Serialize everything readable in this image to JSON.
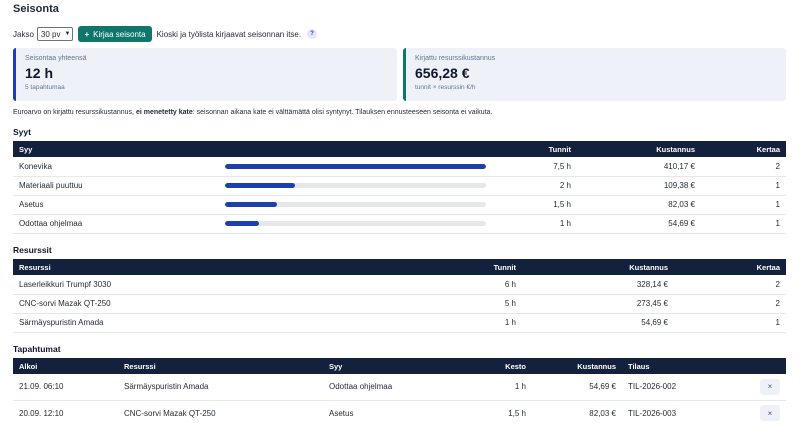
{
  "page": {
    "title": "Seisonta"
  },
  "toolbar": {
    "period_label": "Jakso",
    "period_value": "30 pv",
    "add_button": "Kirjaa seisonta",
    "hint": "Kioski ja työlista kirjaavat seisonnan itse.",
    "help": "?"
  },
  "kpis": {
    "total": {
      "label": "Seisontaa yhteensä",
      "value": "12 h",
      "sub": "5 tapahtumaa"
    },
    "cost": {
      "label": "Kirjattu resurssikustannus",
      "value": "656,28 €",
      "sub": "tunnit × resurssin €/h"
    }
  },
  "note": {
    "before": "Euroarvo on kirjattu resurssikustannus, ",
    "bold": "ei menetetty kate",
    "after": ": seisonnan aikana kate ei välttämättä olisi syntynyt. Tilauksen ennusteeseen seisonta ei vaikuta."
  },
  "causes": {
    "title": "Syyt",
    "headers": {
      "cause": "Syy",
      "hours": "Tunnit",
      "cost": "Kustannus",
      "count": "Kertaa"
    },
    "rows": [
      {
        "cause": "Konevika",
        "share": 1.0,
        "hours": "7,5 h",
        "cost": "410,17 €",
        "count": "2"
      },
      {
        "cause": "Materiaali puuttuu",
        "share": 0.27,
        "hours": "2 h",
        "cost": "109,38 €",
        "count": "1"
      },
      {
        "cause": "Asetus",
        "share": 0.2,
        "hours": "1,5 h",
        "cost": "82,03 €",
        "count": "1"
      },
      {
        "cause": "Odottaa ohjelmaa",
        "share": 0.13,
        "hours": "1 h",
        "cost": "54,69 €",
        "count": "1"
      }
    ]
  },
  "resources": {
    "title": "Resurssit",
    "headers": {
      "resource": "Resurssi",
      "hours": "Tunnit",
      "cost": "Kustannus",
      "count": "Kertaa"
    },
    "rows": [
      {
        "resource": "Laserleikkuri Trumpf 3030",
        "hours": "6 h",
        "cost": "328,14 €",
        "count": "2"
      },
      {
        "resource": "CNC-sorvi Mazak QT-250",
        "hours": "5 h",
        "cost": "273,45 €",
        "count": "2"
      },
      {
        "resource": "Särmäyspuristin Amada",
        "hours": "1 h",
        "cost": "54,69 €",
        "count": "1"
      }
    ]
  },
  "events": {
    "title": "Tapahtumat",
    "headers": {
      "started": "Alkoi",
      "resource": "Resurssi",
      "cause": "Syy",
      "duration": "Kesto",
      "cost": "Kustannus",
      "order": "Tilaus"
    },
    "delete_icon": "×",
    "rows": [
      {
        "started": "21.09. 06:10",
        "resource": "Särmäyspuristin Amada",
        "cause": "Odottaa ohjelmaa",
        "duration": "1 h",
        "cost": "54,69 €",
        "order": "TIL-2026-002"
      },
      {
        "started": "20.09. 12:10",
        "resource": "CNC-sorvi Mazak QT-250",
        "cause": "Asetus",
        "duration": "1,5 h",
        "cost": "82,03 €",
        "order": "TIL-2026-003"
      }
    ]
  }
}
